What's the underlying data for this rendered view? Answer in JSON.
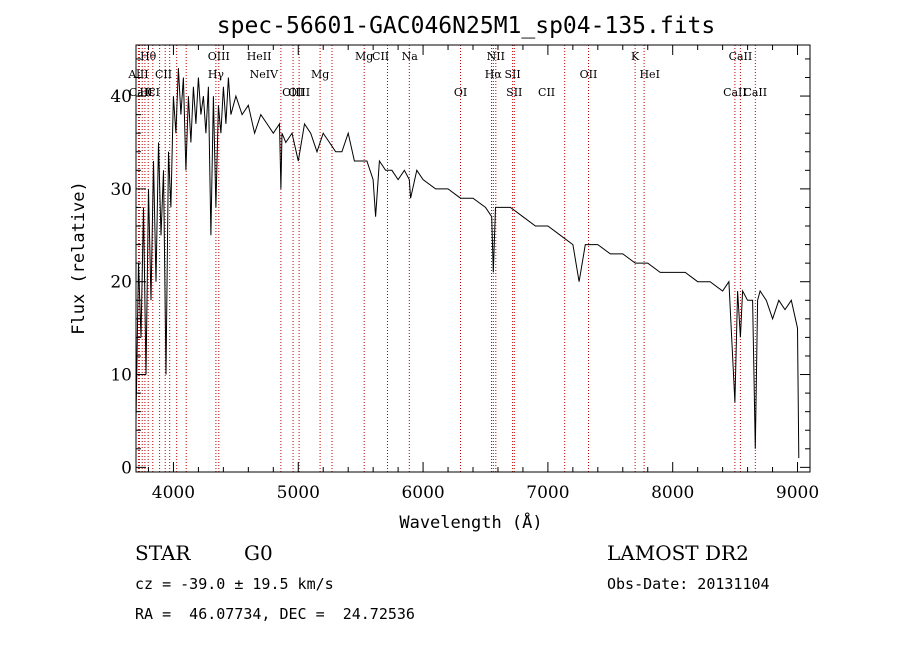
{
  "chart_data": {
    "type": "line",
    "title": "spec-56601-GAC046N25M1_sp04-135.fits",
    "xlabel": "Wavelength (Å)",
    "ylabel": "Flux (relative)",
    "xlim": [
      3700,
      9100
    ],
    "ylim": [
      -0.5,
      45.5
    ],
    "x_ticks": [
      4000,
      5000,
      6000,
      7000,
      8000,
      9000
    ],
    "y_ticks": [
      0,
      10,
      20,
      30,
      40
    ],
    "grid": false,
    "line_color": "#000000",
    "marker_color": "#c00000",
    "series": [
      {
        "x": [
          3700,
          3720,
          3740,
          3760,
          3780,
          3800,
          3820,
          3840,
          3860,
          3880,
          3900,
          3920,
          3940,
          3960,
          3980,
          4000,
          4020,
          4040,
          4060,
          4080,
          4100,
          4120,
          4140,
          4160,
          4180,
          4200,
          4220,
          4240,
          4260,
          4280,
          4300,
          4320,
          4340,
          4360,
          4380,
          4400,
          4420,
          4440,
          4460,
          4480,
          4500,
          4550,
          4600,
          4650,
          4700,
          4750,
          4800,
          4850,
          4861,
          4870,
          4900,
          4950,
          5000,
          5050,
          5100,
          5150,
          5200,
          5250,
          5300,
          5350,
          5400,
          5450,
          5500,
          5550,
          5600,
          5620,
          5650,
          5700,
          5750,
          5800,
          5850,
          5890,
          5900,
          5950,
          6000,
          6100,
          6200,
          6300,
          6400,
          6500,
          6550,
          6563,
          6580,
          6600,
          6700,
          6800,
          6900,
          7000,
          7100,
          7200,
          7250,
          7300,
          7400,
          7500,
          7600,
          7700,
          7800,
          7900,
          8000,
          8100,
          8200,
          8300,
          8400,
          8450,
          8498,
          8520,
          8542,
          8560,
          8600,
          8640,
          8662,
          8680,
          8700,
          8750,
          8800,
          8850,
          8900,
          8950,
          9000,
          9010
        ],
        "y": [
          5,
          22,
          14,
          28,
          10,
          30,
          18,
          33,
          20,
          35,
          25,
          32,
          10,
          34,
          28,
          40,
          36,
          43,
          38,
          42,
          32,
          40,
          35,
          41,
          37,
          42,
          38,
          40,
          36,
          41,
          25,
          40,
          28,
          39,
          36,
          41,
          37,
          42,
          38,
          39,
          40,
          38,
          39,
          36,
          38,
          37,
          36,
          37,
          30,
          36,
          35,
          36,
          33,
          37,
          36,
          34,
          36,
          35,
          34,
          34,
          36,
          33,
          33,
          33,
          31,
          27,
          33,
          32,
          32,
          31,
          32,
          31,
          29,
          32,
          31,
          30,
          30,
          29,
          29,
          28,
          27,
          21,
          28,
          28,
          28,
          27,
          26,
          26,
          25,
          24,
          20,
          24,
          24,
          23,
          23,
          22,
          22,
          21,
          21,
          21,
          20,
          20,
          19,
          20,
          7,
          19,
          14,
          19,
          18,
          18,
          2,
          18,
          19,
          18,
          16,
          18,
          17,
          18,
          15,
          1
        ]
      }
    ],
    "spectral_lines": [
      {
        "label": "Hθ",
        "x": 3798,
        "row": 1
      },
      {
        "label": "AlII",
        "x": 3720,
        "row": 2
      },
      {
        "label": "CII",
        "x": 3920,
        "row": 2
      },
      {
        "label": "OIII",
        "x": 4363,
        "row": 1
      },
      {
        "label": "Hγ",
        "x": 4340,
        "row": 2
      },
      {
        "label": "CaII",
        "x": 3738,
        "row": 3
      },
      {
        "label": "Hε",
        "x": 3789,
        "row": 3
      },
      {
        "label": "CI",
        "x": 3841,
        "row": 3
      },
      {
        "label": "HeII",
        "x": 4686,
        "row": 1
      },
      {
        "label": "NeIV",
        "x": 4725,
        "row": 2
      },
      {
        "label": "Mg",
        "x": 5175,
        "row": 2
      },
      {
        "label": "OIII",
        "x": 4959,
        "row": 3
      },
      {
        "label": "OIII",
        "x": 5007,
        "row": 3
      },
      {
        "label": "Mg",
        "x": 5528,
        "row": 1
      },
      {
        "label": "CII",
        "x": 5660,
        "row": 1
      },
      {
        "label": "Na",
        "x": 5893,
        "row": 1
      },
      {
        "label": "NII",
        "x": 6583,
        "row": 1
      },
      {
        "label": "Hα",
        "x": 6563,
        "row": 2
      },
      {
        "label": "SII",
        "x": 6717,
        "row": 2
      },
      {
        "label": "OI",
        "x": 6300,
        "row": 3
      },
      {
        "label": "SII",
        "x": 6731,
        "row": 3
      },
      {
        "label": "CII",
        "x": 6990,
        "row": 3
      },
      {
        "label": "OII",
        "x": 7325,
        "row": 2
      },
      {
        "label": "K",
        "x": 7699,
        "row": 1
      },
      {
        "label": "HeI",
        "x": 7816,
        "row": 2
      },
      {
        "label": "CaII",
        "x": 8542,
        "row": 1
      },
      {
        "label": "CaII",
        "x": 8498,
        "row": 3
      },
      {
        "label": "CaII",
        "x": 8662,
        "row": 3
      }
    ],
    "marker_lines": [
      3719,
      3727,
      3750,
      3771,
      3798,
      3835,
      3889,
      3934,
      3970,
      4026,
      4102,
      4340,
      4363,
      4861,
      4959,
      5007,
      5175,
      5270,
      5528,
      5715,
      5890,
      6300,
      6548,
      6563,
      6583,
      6717,
      6731,
      7135,
      7325,
      7699,
      7771,
      8498,
      8542,
      8662
    ]
  },
  "footer": {
    "object": "STAR",
    "subclass": "G0",
    "survey": "LAMOST DR2",
    "redshift_line": "cz = -39.0 ± 19.5 km/s",
    "obs_date_line": "Obs-Date: 20131104",
    "coords_line": "RA =  46.07734, DEC =  24.72536"
  }
}
